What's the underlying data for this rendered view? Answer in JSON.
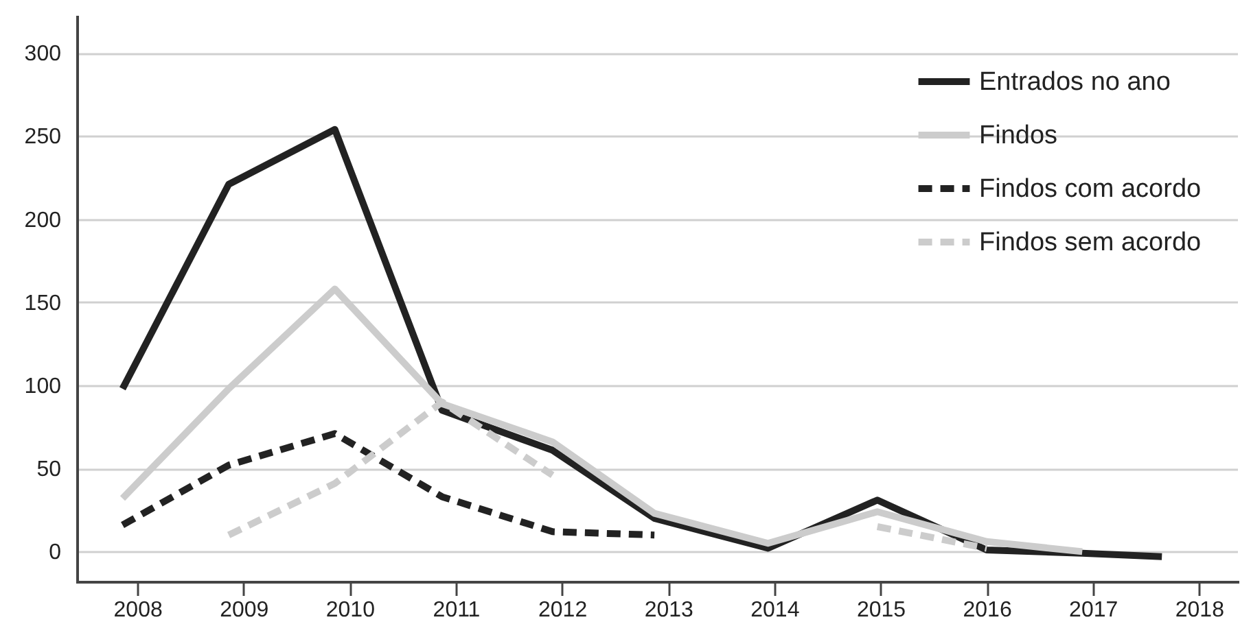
{
  "chart_data": {
    "type": "line",
    "x": [
      2007.86,
      2008.86,
      2009.86,
      2010.87,
      2011.91,
      2012.87,
      2013.94,
      2014.97,
      2016.0,
      2016.9,
      2017.65
    ],
    "series": [
      {
        "name": "Entrados no ano",
        "color": "#222222",
        "line_style": "solid",
        "values": [
          98,
          221,
          254,
          85,
          61,
          20,
          2,
          31,
          1,
          -1,
          -3
        ]
      },
      {
        "name": "Findos",
        "color": "#cccccc",
        "line_style": "solid",
        "values": [
          32,
          98,
          158,
          89,
          66,
          23,
          5,
          24,
          6,
          0,
          null
        ]
      },
      {
        "name": "Findos com acordo",
        "color": "#222222",
        "line_style": "dashed",
        "values": [
          16,
          52,
          71,
          33,
          12,
          10,
          null,
          null,
          null,
          null,
          null
        ]
      },
      {
        "name": "Findos sem acordo",
        "color": "#cccccc",
        "line_style": "dashed",
        "values": [
          null,
          10,
          41,
          90,
          46,
          null,
          null,
          15,
          2,
          null,
          null
        ]
      }
    ],
    "xlim": [
      2007.43,
      2018.36
    ],
    "xticks": [
      2008,
      2009,
      2010,
      2011,
      2012,
      2013,
      2014,
      2015,
      2016,
      2017,
      2018
    ],
    "ylim": [
      -18,
      322
    ],
    "yticks": [
      0,
      50,
      100,
      150,
      200,
      250,
      300
    ],
    "grid": "y",
    "legend": "top right",
    "marker": "none"
  }
}
